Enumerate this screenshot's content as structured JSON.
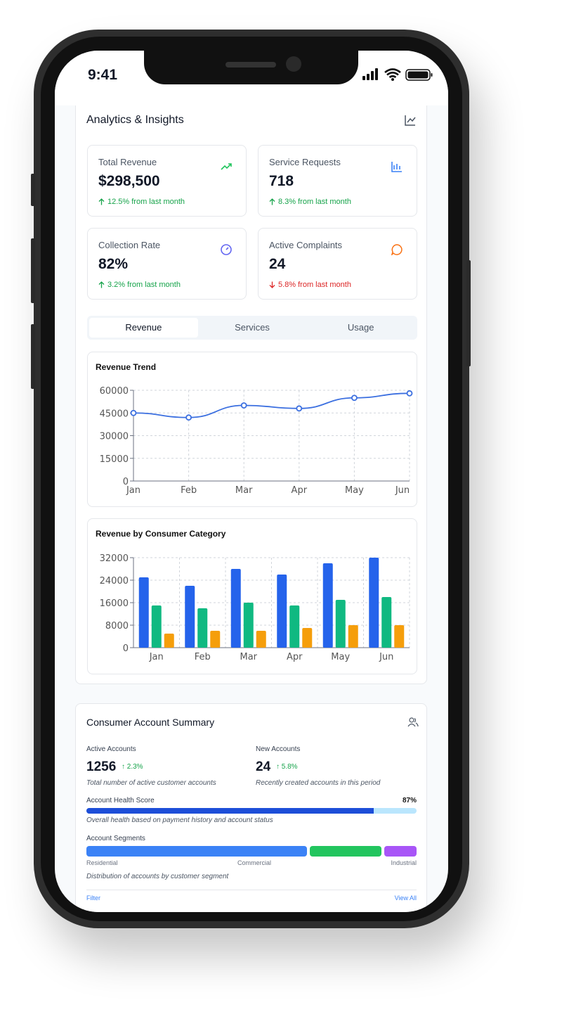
{
  "status_bar": {
    "time": "9:41"
  },
  "analytics": {
    "title": "Analytics & Insights",
    "kpis": [
      {
        "label": "Total Revenue",
        "value": "$298,500",
        "change": "12.5% from last month",
        "trend": "up"
      },
      {
        "label": "Service Requests",
        "value": 718,
        "change": "8.3% from last month",
        "trend": "up"
      },
      {
        "label": "Collection Rate",
        "value": "82%",
        "change": "3.2% from last month",
        "trend": "up"
      },
      {
        "label": "Active Complaints",
        "value": 24,
        "change": "5.8% from last month",
        "trend": "down"
      }
    ],
    "tabs": [
      "Revenue",
      "Services",
      "Usage"
    ],
    "active_tab": 0
  },
  "chart_data": [
    {
      "type": "line",
      "title": "Revenue Trend",
      "categories": [
        "Jan",
        "Feb",
        "Mar",
        "Apr",
        "May",
        "Jun"
      ],
      "values": [
        45000,
        42000,
        50000,
        48000,
        55000,
        58000
      ],
      "color": "#3b6fe0",
      "ylim": [
        0,
        60000
      ],
      "yticks": [
        0,
        15000,
        30000,
        45000,
        60000
      ],
      "grid": true
    },
    {
      "type": "bar",
      "title": "Revenue by Consumer Category",
      "categories": [
        "Jan",
        "Feb",
        "Mar",
        "Apr",
        "May",
        "Jun"
      ],
      "series": [
        {
          "color": "#2563eb",
          "values": [
            25000,
            22000,
            28000,
            26000,
            30000,
            32000
          ]
        },
        {
          "color": "#10b981",
          "values": [
            15000,
            14000,
            16000,
            15000,
            17000,
            18000
          ]
        },
        {
          "color": "#f59e0b",
          "values": [
            5000,
            6000,
            6000,
            7000,
            8000,
            8000
          ]
        }
      ],
      "ylim": [
        0,
        32000
      ],
      "yticks": [
        0,
        8000,
        16000,
        24000,
        32000
      ],
      "grid": true
    }
  ],
  "account_summary": {
    "title": "Consumer Account Summary",
    "metrics": [
      {
        "label": "Active Accounts",
        "value": 1256,
        "change": "2.3%",
        "description": "Total number of active customer accounts"
      },
      {
        "label": "New Accounts",
        "value": 24,
        "change": "5.8%",
        "description": "Recently created accounts in this period"
      }
    ],
    "health": {
      "label": "Account Health Score",
      "score": {
        "value": 87,
        "label": "87%"
      },
      "description": "Overall health based on payment history and account status"
    },
    "segments": {
      "label": "Account Segments",
      "items": [
        {
          "name": "Residential",
          "share": 68,
          "color": "#3b82f6"
        },
        {
          "name": "Commercial",
          "share": 22,
          "color": "#22c55e"
        },
        {
          "name": "Industrial",
          "share": 10,
          "color": "#a855f7"
        }
      ],
      "description": "Distribution of accounts by customer segment"
    },
    "actions": [
      "Filter",
      "View All"
    ]
  }
}
